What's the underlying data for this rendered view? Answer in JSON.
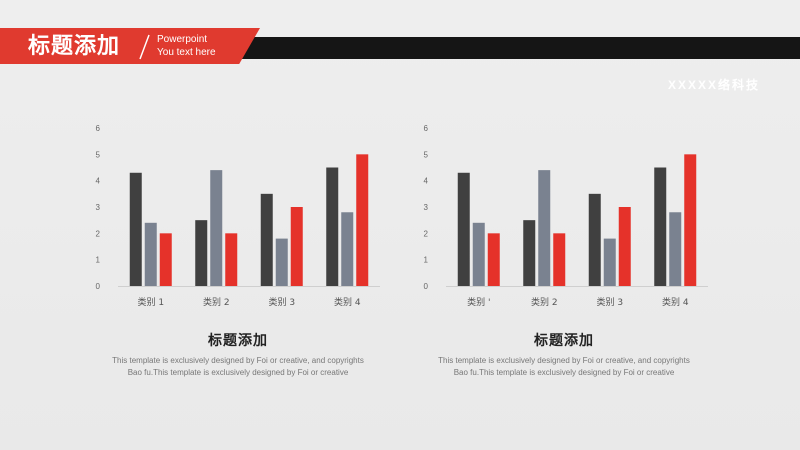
{
  "header": {
    "title": "标题添加",
    "subtitle_line1": "Powerpoint",
    "subtitle_line2": "You text here",
    "company": "XXXXX络科技"
  },
  "colors": {
    "series_dark": "#404040",
    "series_gray": "#7a8290",
    "series_red": "#e5322a",
    "accent": "#e03a2f",
    "header_bar": "#151515"
  },
  "panels": [
    {
      "heading": "标题添加",
      "description": "This template is exclusively designed by Foi or creative, and copyrights Bao fu.This template is exclusively designed by Foi or creative",
      "x_tick_labels": [
        "类别 1",
        "类别 2",
        "类别 3",
        "类别 4"
      ]
    },
    {
      "heading": "标题添加",
      "description": "This template is exclusively designed by Foi or creative, and copyrights Bao fu.This template is exclusively designed by Foi or creative",
      "x_tick_labels": [
        "类别 '",
        "类别 2",
        "类别 3",
        "类别 4"
      ]
    }
  ],
  "chart_data": [
    {
      "type": "bar",
      "categories": [
        "类别 1",
        "类别 2",
        "类别 3",
        "类别 4"
      ],
      "series": [
        {
          "values": [
            4.3,
            2.5,
            3.5,
            4.5
          ],
          "color": "#404040"
        },
        {
          "values": [
            2.4,
            4.4,
            1.8,
            2.8
          ],
          "color": "#7a8290"
        },
        {
          "values": [
            2.0,
            2.0,
            3.0,
            5.0
          ],
          "color": "#e5322a"
        }
      ],
      "ylim": [
        0,
        6
      ],
      "y_ticks": [
        0,
        1,
        2,
        3,
        4,
        5,
        6
      ],
      "title": "",
      "xlabel": "",
      "ylabel": "",
      "grid": false
    },
    {
      "type": "bar",
      "categories": [
        "类别 '",
        "类别 2",
        "类别 3",
        "类别 4"
      ],
      "series": [
        {
          "values": [
            4.3,
            2.5,
            3.5,
            4.5
          ],
          "color": "#404040"
        },
        {
          "values": [
            2.4,
            4.4,
            1.8,
            2.8
          ],
          "color": "#7a8290"
        },
        {
          "values": [
            2.0,
            2.0,
            3.0,
            5.0
          ],
          "color": "#e5322a"
        }
      ],
      "ylim": [
        0,
        6
      ],
      "y_ticks": [
        0,
        1,
        2,
        3,
        4,
        5,
        6
      ],
      "title": "",
      "xlabel": "",
      "ylabel": "",
      "grid": false
    }
  ]
}
